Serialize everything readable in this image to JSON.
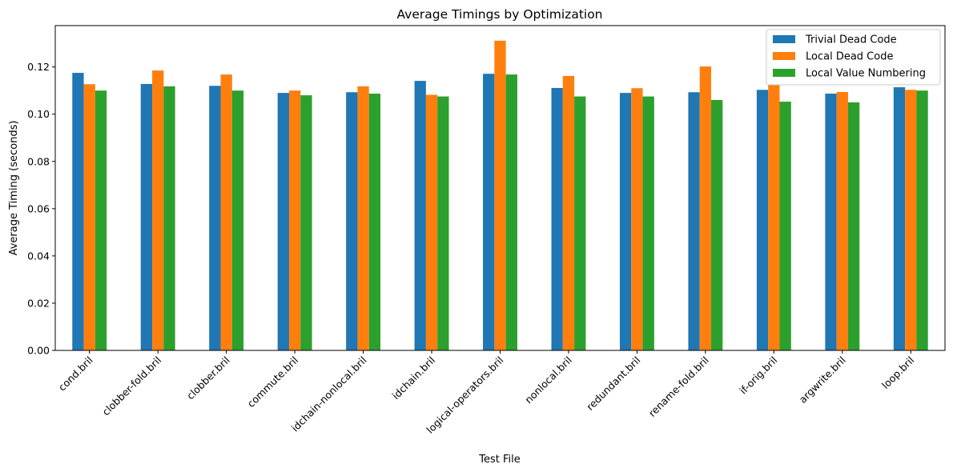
{
  "chart_data": {
    "type": "bar",
    "title": "Average Timings by Optimization",
    "xlabel": "Test File",
    "ylabel": "Average Timing (seconds)",
    "ylim": [
      0,
      0.1375
    ],
    "yticks": [
      0.0,
      0.02,
      0.04,
      0.06,
      0.08,
      0.1,
      0.12
    ],
    "ytick_labels": [
      "0.00",
      "0.02",
      "0.04",
      "0.06",
      "0.08",
      "0.10",
      "0.12"
    ],
    "grid": false,
    "legend_position": "top-right",
    "categories": [
      "cond.bril",
      "clobber-fold.bril",
      "clobber.bril",
      "commute.bril",
      "idchain-nonlocal.bril",
      "idchain.bril",
      "logical-operators.bril",
      "nonlocal.bril",
      "redundant.bril",
      "rename-fold.bril",
      "if-orig.bril",
      "argwrite.bril",
      "loop.bril"
    ],
    "series": [
      {
        "name": "Trivial Dead Code",
        "color": "#1f77b4",
        "values": [
          0.1175,
          0.1128,
          0.112,
          0.109,
          0.1093,
          0.1141,
          0.1171,
          0.1111,
          0.109,
          0.1093,
          0.1103,
          0.1087,
          0.1114
        ]
      },
      {
        "name": "Local Dead Code",
        "color": "#ff7f0e",
        "values": [
          0.1127,
          0.1185,
          0.1168,
          0.11,
          0.1118,
          0.1082,
          0.1311,
          0.1162,
          0.111,
          0.1202,
          0.1124,
          0.1094,
          0.1103
        ]
      },
      {
        "name": "Local Value Numbering",
        "color": "#2ca02c",
        "values": [
          0.11,
          0.1118,
          0.11,
          0.108,
          0.1087,
          0.1075,
          0.1168,
          0.1075,
          0.1075,
          0.106,
          0.1053,
          0.105,
          0.11
        ]
      }
    ]
  }
}
